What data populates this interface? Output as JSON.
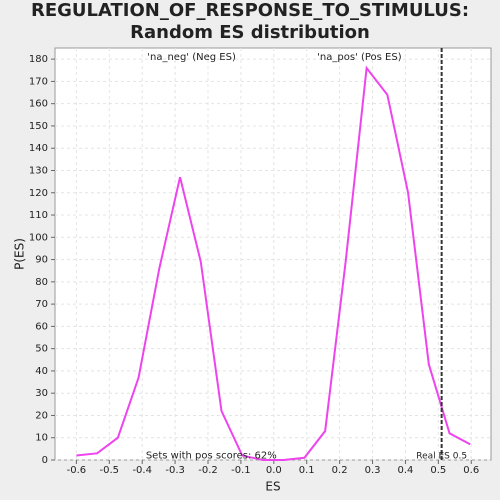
{
  "chart_data": {
    "type": "line",
    "title": "REGULATION_OF_RESPONSE_TO_STIMULUS: Random ES distribution",
    "xlabel": "ES",
    "ylabel": "P(ES)",
    "x": [
      -0.6,
      -0.537,
      -0.474,
      -0.411,
      -0.348,
      -0.285,
      -0.222,
      -0.159,
      -0.096,
      -0.033,
      0.03,
      0.093,
      0.156,
      0.219,
      0.282,
      0.345,
      0.408,
      0.471,
      0.534,
      0.597
    ],
    "series": [
      {
        "name": "ES",
        "color": "#ee44ee",
        "values": [
          2,
          3,
          10,
          37,
          86,
          127,
          89,
          22,
          2,
          0,
          0,
          1,
          13,
          90,
          176,
          164,
          120,
          43,
          12,
          7
        ]
      }
    ],
    "xlim": [
      -0.665,
      0.66
    ],
    "ylim": [
      0,
      185
    ],
    "xticks": [
      -0.6,
      -0.5,
      -0.4,
      -0.3,
      -0.2,
      -0.1,
      {
        "value": 0,
        "label": "0.0"
      },
      0.1,
      0.2,
      0.3,
      0.4,
      0.5,
      0.6
    ],
    "yticks": [
      0,
      10,
      20,
      30,
      40,
      50,
      60,
      70,
      80,
      90,
      100,
      110,
      120,
      130,
      140,
      150,
      160,
      170,
      180
    ],
    "grid": true,
    "vline": {
      "value": 0.51,
      "label": "Real ES 0.5"
    },
    "annotations": [
      {
        "text": "'na_neg' (Neg ES)",
        "x": -0.25,
        "y": 181,
        "color": "#3333cc"
      },
      {
        "text": "'na_pos' (Pos ES)",
        "x": 0.26,
        "y": 181,
        "color": "#cc3333"
      },
      {
        "text": "Sets with pos scores: 62%",
        "x": -0.19,
        "y": 2,
        "color": "#333333"
      }
    ]
  }
}
